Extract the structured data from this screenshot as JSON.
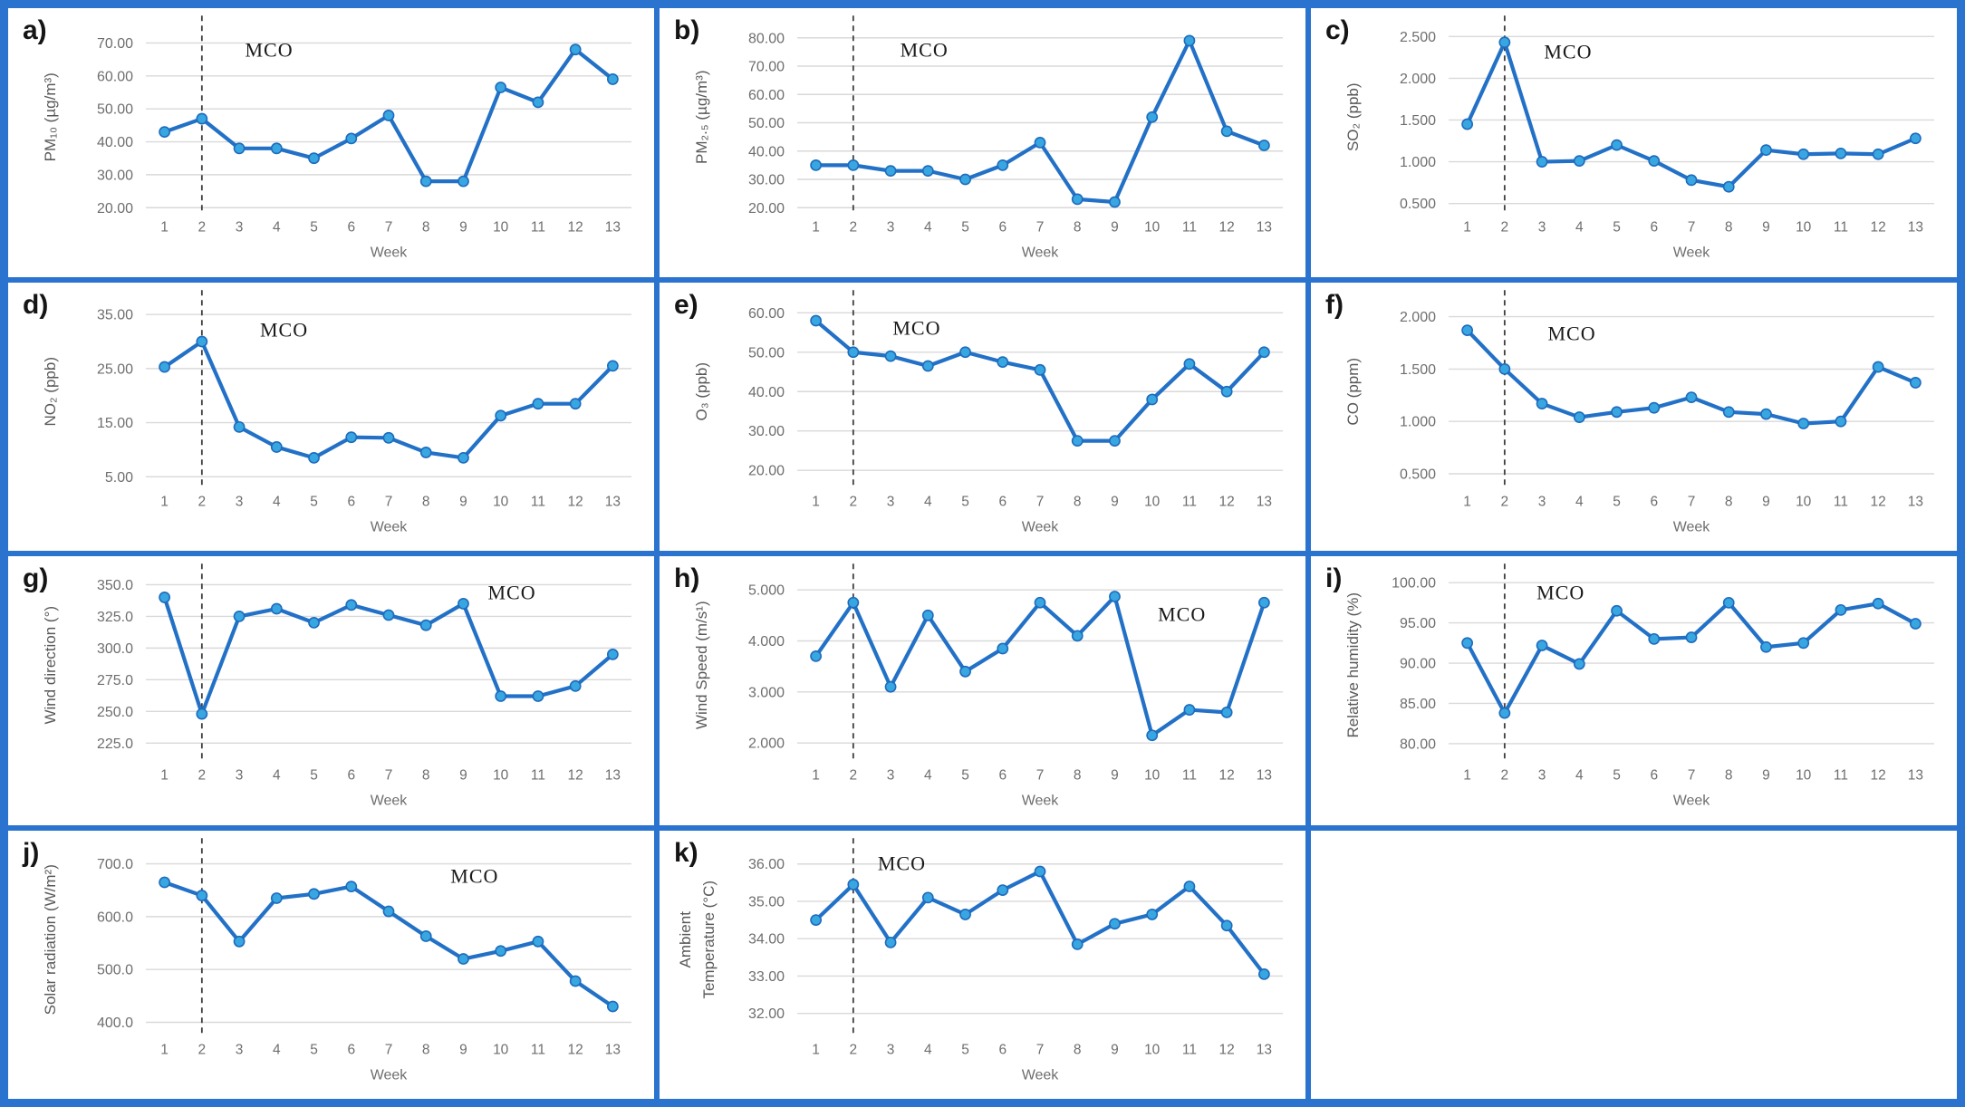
{
  "figure": {
    "annotation_label": "MCO",
    "border_color": "#2a73cf",
    "line_color": "#2271c7",
    "marker_fill": "#38a6e0",
    "marker_stroke": "#1e6bbd",
    "grid_color": "#d9d9d9",
    "tick_color": "#6e6e6e",
    "ylabel_color": "#595959",
    "mco_color": "#1a1a1a",
    "dash_color": "#3f3f3f"
  },
  "x_axis": {
    "label": "Week",
    "categories": [
      "1",
      "2",
      "3",
      "4",
      "5",
      "6",
      "7",
      "8",
      "9",
      "10",
      "11",
      "12",
      "13"
    ]
  },
  "chart_data": [
    {
      "letter": "a)",
      "type": "line",
      "ylabel_lines": [
        "PM₁₀ (µg/m³)"
      ],
      "xlabel": "Week",
      "x": [
        1,
        2,
        3,
        4,
        5,
        6,
        7,
        8,
        9,
        10,
        11,
        12,
        13
      ],
      "values": [
        43,
        47,
        38,
        38,
        35,
        41,
        48,
        28,
        28,
        56.5,
        52,
        68,
        59
      ],
      "ylim": [
        20,
        75
      ],
      "tick_values": [
        20,
        30,
        40,
        50,
        60,
        70
      ],
      "tick_labels": [
        "20.00",
        "30.00",
        "40.00",
        "50.00",
        "60.00",
        "70.00"
      ],
      "annotation": {
        "label": "MCO",
        "week": 3.8,
        "fy": 0.13
      },
      "dashed_line_week": 2
    },
    {
      "letter": "b)",
      "type": "line",
      "ylabel_lines": [
        "PM₂.₅ (µg/m³)"
      ],
      "xlabel": "Week",
      "x": [
        1,
        2,
        3,
        4,
        5,
        6,
        7,
        8,
        9,
        10,
        11,
        12,
        13
      ],
      "values": [
        35,
        35,
        33,
        33,
        30,
        35,
        43,
        23,
        22,
        52,
        79,
        47,
        42
      ],
      "ylim": [
        20,
        84
      ],
      "tick_values": [
        20,
        30,
        40,
        50,
        60,
        70,
        80
      ],
      "tick_labels": [
        "20.00",
        "30.00",
        "40.00",
        "50.00",
        "60.00",
        "70.00",
        "80.00"
      ],
      "annotation": {
        "label": "MCO",
        "week": 3.9,
        "fy": 0.13
      },
      "dashed_line_week": 2
    },
    {
      "letter": "c)",
      "type": "line",
      "ylabel_lines": [
        "SO₂ (ppb)"
      ],
      "xlabel": "Week",
      "x": [
        1,
        2,
        3,
        4,
        5,
        6,
        7,
        8,
        9,
        10,
        11,
        12,
        13
      ],
      "values": [
        1.45,
        2.43,
        1.0,
        1.01,
        1.2,
        1.01,
        0.78,
        0.7,
        1.14,
        1.09,
        1.1,
        1.09,
        1.28
      ],
      "ylim": [
        0.45,
        2.62
      ],
      "tick_values": [
        0.5,
        1.0,
        1.5,
        2.0,
        2.5
      ],
      "tick_labels": [
        "0.500",
        "1.000",
        "1.500",
        "2.000",
        "2.500"
      ],
      "annotation": {
        "label": "MCO",
        "week": 3.7,
        "fy": 0.14
      },
      "dashed_line_week": 2
    },
    {
      "letter": "d)",
      "type": "line",
      "ylabel_lines": [
        "NO₂ (ppb)"
      ],
      "xlabel": "Week",
      "x": [
        1,
        2,
        3,
        4,
        5,
        6,
        7,
        8,
        9,
        10,
        11,
        12,
        13
      ],
      "values": [
        25.3,
        30.0,
        14.2,
        10.5,
        8.5,
        12.3,
        12.2,
        9.5,
        8.5,
        16.3,
        18.5,
        18.5,
        25.5
      ],
      "ylim": [
        4,
        37.5
      ],
      "tick_values": [
        5,
        15,
        25,
        35
      ],
      "tick_labels": [
        "5.00",
        "15.00",
        "25.00",
        "35.00"
      ],
      "annotation": {
        "label": "MCO",
        "week": 4.2,
        "fy": 0.16
      },
      "dashed_line_week": 2
    },
    {
      "letter": "e)",
      "type": "line",
      "ylabel_lines": [
        "O₃ (ppb)"
      ],
      "xlabel": "Week",
      "x": [
        1,
        2,
        3,
        4,
        5,
        6,
        7,
        8,
        9,
        10,
        11,
        12,
        13
      ],
      "values": [
        58,
        50,
        49,
        46.5,
        50,
        47.5,
        45.5,
        27.5,
        27.5,
        38,
        47,
        40,
        50
      ],
      "ylim": [
        17,
        63
      ],
      "tick_values": [
        20,
        30,
        40,
        50,
        60
      ],
      "tick_labels": [
        "20.00",
        "30.00",
        "40.00",
        "50.00",
        "60.00"
      ],
      "annotation": {
        "label": "MCO",
        "week": 3.7,
        "fy": 0.15
      },
      "dashed_line_week": 2
    },
    {
      "letter": "f)",
      "type": "line",
      "ylabel_lines": [
        "CO (ppm)"
      ],
      "xlabel": "Week",
      "x": [
        1,
        2,
        3,
        4,
        5,
        6,
        7,
        8,
        9,
        10,
        11,
        12,
        13
      ],
      "values": [
        1.87,
        1.5,
        1.17,
        1.04,
        1.09,
        1.13,
        1.23,
        1.09,
        1.07,
        0.98,
        1.0,
        1.52,
        1.37
      ],
      "ylim": [
        0.42,
        2.15
      ],
      "tick_values": [
        0.5,
        1.0,
        1.5,
        2.0
      ],
      "tick_labels": [
        "0.500",
        "1.000",
        "1.500",
        "2.000"
      ],
      "annotation": {
        "label": "MCO",
        "week": 3.8,
        "fy": 0.18
      },
      "dashed_line_week": 2
    },
    {
      "letter": "g)",
      "type": "line",
      "ylabel_lines": [
        "Wind direction (°)"
      ],
      "xlabel": "Week",
      "x": [
        1,
        2,
        3,
        4,
        5,
        6,
        7,
        8,
        9,
        10,
        11,
        12,
        13
      ],
      "values": [
        340,
        248,
        325,
        331,
        320,
        334,
        326,
        318,
        335,
        262,
        262,
        270,
        295
      ],
      "ylim": [
        215,
        358
      ],
      "tick_values": [
        225,
        250,
        275,
        300,
        325,
        350
      ],
      "tick_labels": [
        "225.0",
        "250.0",
        "275.0",
        "300.0",
        "325.0",
        "350.0"
      ],
      "annotation": {
        "label": "MCO",
        "week": 10.3,
        "fy": 0.1
      },
      "dashed_line_week": 2
    },
    {
      "letter": "h)",
      "type": "line",
      "ylabel_lines": [
        "Wind Speed (m/s¹)"
      ],
      "xlabel": "Week",
      "x": [
        1,
        2,
        3,
        4,
        5,
        6,
        7,
        8,
        9,
        10,
        11,
        12,
        13
      ],
      "values": [
        3.7,
        4.75,
        3.1,
        4.5,
        3.4,
        3.85,
        4.75,
        4.1,
        4.87,
        2.15,
        2.65,
        2.6,
        4.75
      ],
      "ylim": [
        1.75,
        5.3
      ],
      "tick_values": [
        2,
        3,
        4,
        5
      ],
      "tick_labels": [
        "2.000",
        "3.000",
        "4.000",
        "5.000"
      ],
      "annotation": {
        "label": "MCO",
        "week": 10.8,
        "fy": 0.22
      },
      "dashed_line_week": 2
    },
    {
      "letter": "i)",
      "type": "line",
      "ylabel_lines": [
        "Relative humidity (%)"
      ],
      "xlabel": "Week",
      "x": [
        1,
        2,
        3,
        4,
        5,
        6,
        7,
        8,
        9,
        10,
        11,
        12,
        13
      ],
      "values": [
        92.5,
        83.8,
        92.2,
        89.9,
        96.5,
        93.0,
        93.2,
        97.5,
        92.0,
        92.5,
        96.6,
        97.4,
        94.9
      ],
      "ylim": [
        78.5,
        101
      ],
      "tick_values": [
        80,
        85,
        90,
        95,
        100
      ],
      "tick_labels": [
        "80.00",
        "85.00",
        "90.00",
        "95.00",
        "100.00"
      ],
      "annotation": {
        "label": "MCO",
        "week": 3.5,
        "fy": 0.1
      },
      "dashed_line_week": 2
    },
    {
      "letter": "j)",
      "type": "line",
      "ylabel_lines": [
        "Solar radiation (W/m²)"
      ],
      "xlabel": "Week",
      "x": [
        1,
        2,
        3,
        4,
        5,
        6,
        7,
        8,
        9,
        10,
        11,
        12,
        13
      ],
      "values": [
        665,
        640,
        553,
        635,
        643,
        657,
        610,
        563,
        520,
        535,
        553,
        478,
        430
      ],
      "ylim": [
        385,
        728
      ],
      "tick_values": [
        400,
        500,
        600,
        700
      ],
      "tick_labels": [
        "400.0",
        "500.0",
        "600.0",
        "700.0"
      ],
      "annotation": {
        "label": "MCO",
        "week": 9.3,
        "fy": 0.15
      },
      "dashed_line_week": 2
    },
    {
      "letter": "k)",
      "type": "line",
      "ylabel_lines": [
        "Ambient",
        "Temperature (°C)"
      ],
      "xlabel": "Week",
      "x": [
        1,
        2,
        3,
        4,
        5,
        6,
        7,
        8,
        9,
        10,
        11,
        12,
        13
      ],
      "values": [
        34.5,
        35.45,
        33.9,
        35.1,
        34.65,
        35.3,
        35.8,
        33.85,
        34.4,
        34.65,
        35.4,
        34.35,
        33.05
      ],
      "ylim": [
        31.55,
        36.4
      ],
      "tick_values": [
        32,
        33,
        34,
        35,
        36
      ],
      "tick_labels": [
        "32.00",
        "33.00",
        "34.00",
        "35.00",
        "36.00"
      ],
      "annotation": {
        "label": "MCO",
        "week": 3.3,
        "fy": 0.08
      },
      "dashed_line_week": 2
    }
  ]
}
